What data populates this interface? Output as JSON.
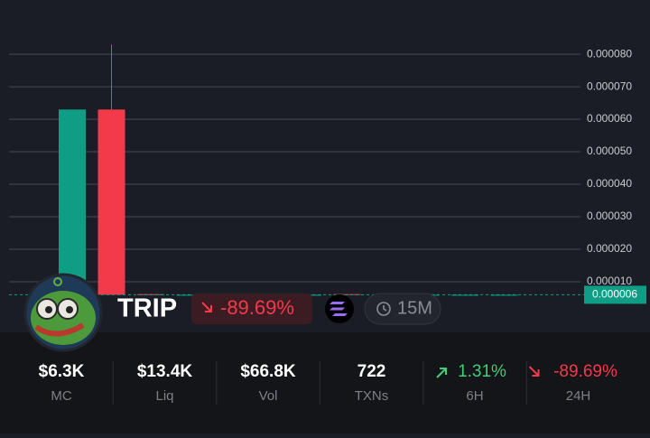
{
  "chart_data": {
    "type": "candlestick",
    "open": [
      6e-06,
      6.3e-05,
      6.2e-06,
      6e-06,
      6e-06,
      6e-06,
      6e-06,
      6.2e-06,
      6e-06,
      6e-06,
      6e-06,
      6e-06
    ],
    "high": [
      6.3e-05,
      8.3e-05,
      6.3e-06,
      6e-06,
      6e-06,
      6e-06,
      6e-06,
      6.3e-06,
      6e-06,
      6e-06,
      6e-06,
      6e-06
    ],
    "low": [
      6e-06,
      6e-06,
      6e-06,
      6e-06,
      6e-06,
      6e-06,
      6e-06,
      6e-06,
      6e-06,
      6e-06,
      6e-06,
      6e-06
    ],
    "close": [
      6.3e-05,
      6e-06,
      6e-06,
      6e-06,
      6e-06,
      6e-06,
      6e-06,
      6e-06,
      6e-06,
      6e-06,
      6e-06,
      6e-06
    ],
    "up_color": "#0f9e85",
    "down_color": "#f23a4b",
    "ylim": [
      0,
      9.67e-05
    ],
    "yticks": [
      {
        "value": 1e-05,
        "label": "0.000010"
      },
      {
        "value": 2e-05,
        "label": "0.000020"
      },
      {
        "value": 3e-05,
        "label": "0.000030"
      },
      {
        "value": 4e-05,
        "label": "0.000040"
      },
      {
        "value": 5e-05,
        "label": "0.000050"
      },
      {
        "value": 6e-05,
        "label": "0.000060"
      },
      {
        "value": 7e-05,
        "label": "0.000070"
      },
      {
        "value": 8e-05,
        "label": "0.000080"
      }
    ],
    "grid": true,
    "current_price": 6e-06
  },
  "token": {
    "name": "TRIP",
    "change": "-89.69%",
    "interval": "15M"
  },
  "stats": [
    {
      "value": "$6.3K",
      "label": "MC"
    },
    {
      "value": "$13.4K",
      "label": "Liq"
    },
    {
      "value": "$66.8K",
      "label": "Vol"
    },
    {
      "value": "722",
      "label": "TXNs"
    },
    {
      "value": "1.31%",
      "label": "6H"
    },
    {
      "value": "-89.69%",
      "label": "24H"
    }
  ]
}
